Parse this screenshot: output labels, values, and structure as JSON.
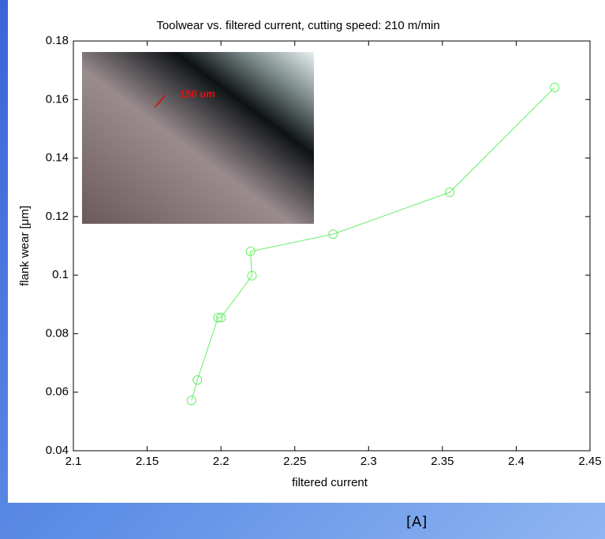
{
  "chart_data": {
    "type": "line",
    "title": "Toolwear vs. filtered current, cutting speed: 210 m/min",
    "x_label": "filtered current",
    "y_label": "flank wear [μm]",
    "annotation": "150 um",
    "x": [
      2.18,
      2.184,
      2.198,
      2.2,
      2.221,
      2.22,
      2.276,
      2.355,
      2.426
    ],
    "series": [
      {
        "color": "#66ee66",
        "values": [
          0.0572,
          0.0642,
          0.0855,
          0.0855,
          0.0998,
          0.1081,
          0.114,
          0.1283,
          0.1641
        ]
      }
    ],
    "xlim": [
      2.1,
      2.45
    ],
    "xticks": [
      2.1,
      2.15,
      2.2,
      2.25,
      2.3,
      2.35,
      2.4,
      2.45
    ],
    "ylim": [
      0.04,
      0.18
    ],
    "yticks": [
      0.04,
      0.06,
      0.08,
      0.1,
      0.12,
      0.14,
      0.16,
      0.18
    ],
    "grid": false
  },
  "caption": "[A]"
}
